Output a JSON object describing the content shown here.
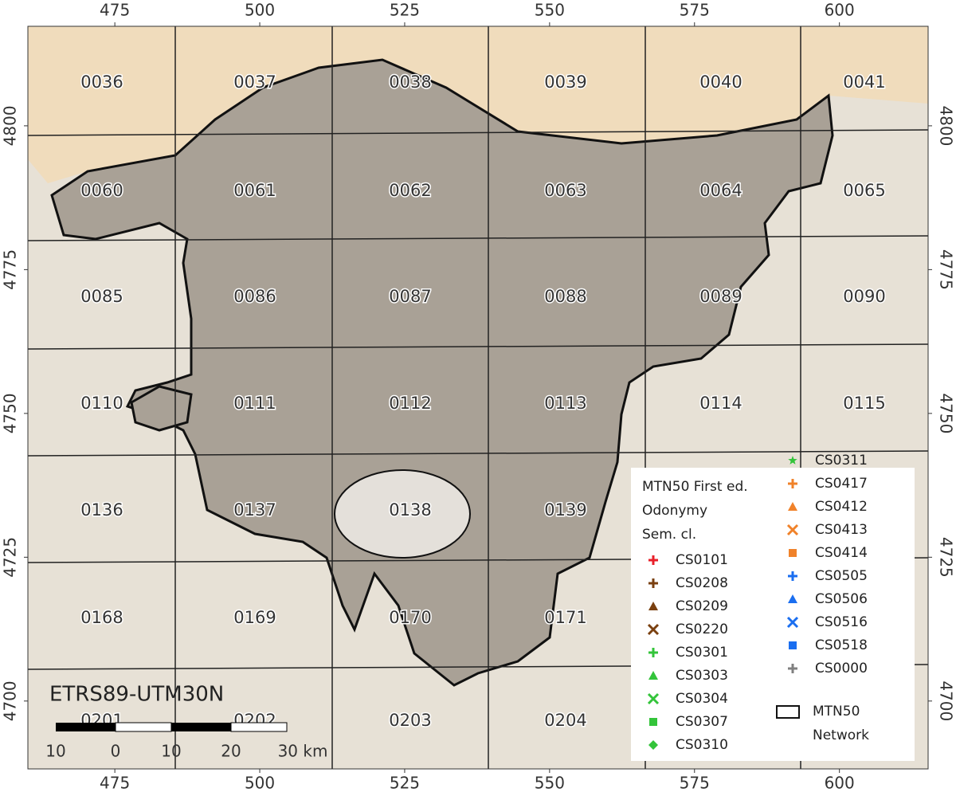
{
  "map": {
    "crs_label": "ETRS89-UTM30N",
    "xlim": [
      460,
      615.3
    ],
    "ylim": [
      4688.2,
      4817.3
    ],
    "xticks": [
      475,
      500,
      525,
      550,
      575,
      600
    ],
    "yticks": [
      4700,
      4725,
      4750,
      4775,
      4800
    ],
    "sheets": [
      [
        "0036",
        "0037",
        "0038",
        "0039",
        "0040",
        "0041"
      ],
      [
        "0060",
        "0061",
        "0062",
        "0063",
        "0064",
        "0065"
      ],
      [
        "0085",
        "0086",
        "0087",
        "0088",
        "0089",
        "0090"
      ],
      [
        "0110",
        "0111",
        "0112",
        "0113",
        "0114",
        "0115"
      ],
      [
        "0136",
        "0137",
        "0138",
        "0139"
      ],
      [
        "0168",
        "0169",
        "0170",
        "0171"
      ],
      [
        "0201",
        "0202",
        "0203",
        "0204"
      ]
    ],
    "legend": {
      "title": [
        "MTN50 First ed.",
        "Odonymy",
        "Sem. cl."
      ],
      "items": [
        {
          "label": "CS0101",
          "color": "#e8202a",
          "symbol": "plus"
        },
        {
          "label": "CS0208",
          "color": "#7a4010",
          "symbol": "plus"
        },
        {
          "label": "CS0209",
          "color": "#7a4010",
          "symbol": "triangle"
        },
        {
          "label": "CS0220",
          "color": "#7a4010",
          "symbol": "cross"
        },
        {
          "label": "CS0301",
          "color": "#33c43a",
          "symbol": "plus"
        },
        {
          "label": "CS0303",
          "color": "#33c43a",
          "symbol": "triangle"
        },
        {
          "label": "CS0304",
          "color": "#33c43a",
          "symbol": "cross"
        },
        {
          "label": "CS0307",
          "color": "#33c43a",
          "symbol": "square"
        },
        {
          "label": "CS0310",
          "color": "#33c43a",
          "symbol": "diamond"
        },
        {
          "label": "CS0311",
          "color": "#33c43a",
          "symbol": "star"
        },
        {
          "label": "CS0417",
          "color": "#f0822a",
          "symbol": "plus"
        },
        {
          "label": "CS0412",
          "color": "#f0822a",
          "symbol": "triangle"
        },
        {
          "label": "CS0413",
          "color": "#f0822a",
          "symbol": "cross"
        },
        {
          "label": "CS0414",
          "color": "#f0822a",
          "symbol": "square"
        },
        {
          "label": "CS0505",
          "color": "#1a6ef0",
          "symbol": "plus"
        },
        {
          "label": "CS0506",
          "color": "#1a6ef0",
          "symbol": "triangle"
        },
        {
          "label": "CS0516",
          "color": "#1a6ef0",
          "symbol": "cross"
        },
        {
          "label": "CS0518",
          "color": "#1a6ef0",
          "symbol": "square"
        },
        {
          "label": "CS0000",
          "color": "#808080",
          "symbol": "plus"
        }
      ],
      "network_label": [
        "MTN50",
        "Network"
      ]
    },
    "scale_bar": {
      "labels": [
        "10",
        "0",
        "10",
        "20",
        "30 km"
      ]
    }
  }
}
